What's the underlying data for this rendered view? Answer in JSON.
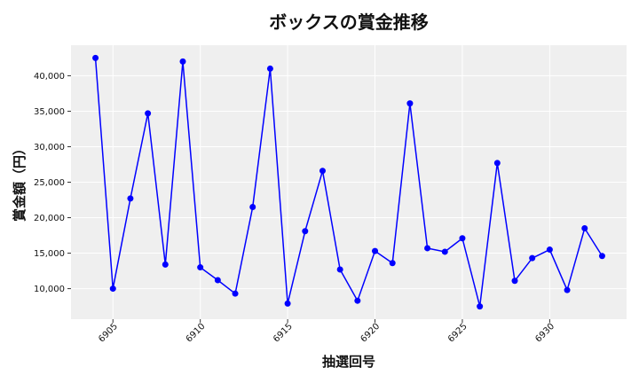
{
  "chart_data": {
    "type": "line",
    "title": "ボックスの賞金推移",
    "xlabel": "抽選回号",
    "ylabel": "賞金額（円）",
    "x": [
      6904,
      6905,
      6906,
      6907,
      6908,
      6909,
      6910,
      6911,
      6912,
      6913,
      6914,
      6915,
      6916,
      6917,
      6918,
      6919,
      6920,
      6921,
      6922,
      6923,
      6924,
      6925,
      6926,
      6927,
      6928,
      6929,
      6930,
      6931,
      6932,
      6933
    ],
    "series": [
      {
        "values": [
          42500,
          10000,
          22700,
          34700,
          13400,
          42000,
          13000,
          11200,
          9300,
          21500,
          41000,
          7900,
          18100,
          26600,
          12700,
          8300,
          15300,
          13600,
          36100,
          15700,
          15200,
          17100,
          7500,
          27700,
          11100,
          14300,
          15500,
          9800,
          18500,
          14600
        ]
      }
    ],
    "xticks": [
      6905,
      6910,
      6915,
      6920,
      6925,
      6930
    ],
    "xtick_labels": [
      "6905",
      "6910",
      "6915",
      "6920",
      "6925",
      "6930"
    ],
    "yticks": [
      10000,
      15000,
      20000,
      25000,
      30000,
      35000,
      40000
    ],
    "ytick_labels": [
      "10,000",
      "15,000",
      "20,000",
      "25,000",
      "30,000",
      "35,000",
      "40,000"
    ],
    "xlim": [
      6902.6,
      6934.4
    ],
    "ylim": [
      5700,
      44300
    ],
    "grid": true,
    "line_color": "#0000ff",
    "background_color": "#efefef"
  }
}
